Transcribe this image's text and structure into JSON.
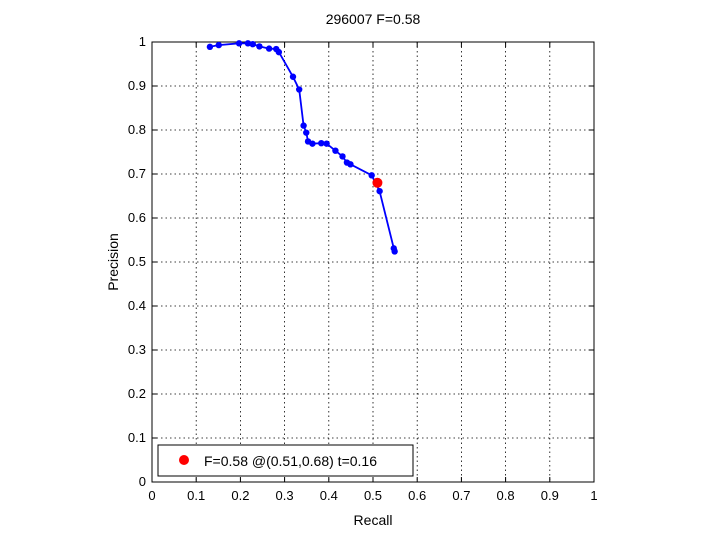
{
  "chart_data": {
    "type": "line",
    "title": "296007 F=0.58",
    "xlabel": "Recall",
    "ylabel": "Precision",
    "xlim": [
      0,
      1
    ],
    "ylim": [
      0,
      1
    ],
    "xticks": [
      "0",
      "0.1",
      "0.2",
      "0.3",
      "0.4",
      "0.5",
      "0.6",
      "0.7",
      "0.8",
      "0.9",
      "1"
    ],
    "yticks": [
      "0",
      "0.1",
      "0.2",
      "0.3",
      "0.4",
      "0.5",
      "0.6",
      "0.7",
      "0.8",
      "0.9",
      "1"
    ],
    "grid": true,
    "legend_position": "bottom-left",
    "series": [
      {
        "color": "#0000ff",
        "x": [
          0.131,
          0.151,
          0.197,
          0.217,
          0.228,
          0.243,
          0.265,
          0.281,
          0.287,
          0.319,
          0.333,
          0.343,
          0.349,
          0.353,
          0.363,
          0.383,
          0.395,
          0.415,
          0.431,
          0.441,
          0.449,
          0.497,
          0.515,
          0.547,
          0.549
        ],
        "y": [
          0.989,
          0.993,
          0.997,
          0.997,
          0.995,
          0.99,
          0.985,
          0.984,
          0.977,
          0.921,
          0.892,
          0.81,
          0.794,
          0.774,
          0.769,
          0.77,
          0.769,
          0.753,
          0.74,
          0.726,
          0.722,
          0.697,
          0.661,
          0.531,
          0.524
        ]
      }
    ],
    "best_point": {
      "color": "#ff0000",
      "x": 0.51,
      "y": 0.68,
      "label": "F=0.58 @(0.51,0.68) t=0.16"
    }
  }
}
